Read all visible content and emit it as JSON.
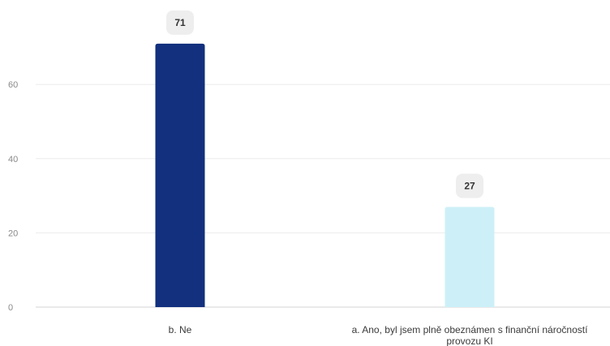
{
  "chart_data": {
    "type": "bar",
    "categories": [
      "b. Ne",
      "a. Ano, byl jsem plně obeznámen s finanční náročností provozu KI"
    ],
    "category_label_lines": [
      [
        "b. Ne"
      ],
      [
        "a. Ano, byl jsem plně obeznámen s finanční náročností",
        "provozu KI"
      ]
    ],
    "values": [
      71,
      27
    ],
    "data_labels": [
      "71",
      "27"
    ],
    "bar_colors": [
      "#12307e",
      "#cdf0f8"
    ],
    "yticks": [
      0,
      20,
      40,
      60
    ],
    "ytick_labels": [
      "0",
      "20",
      "40",
      "60"
    ],
    "ylim": [
      0,
      75
    ],
    "grid": true,
    "title": "",
    "xlabel": "",
    "ylabel": ""
  }
}
